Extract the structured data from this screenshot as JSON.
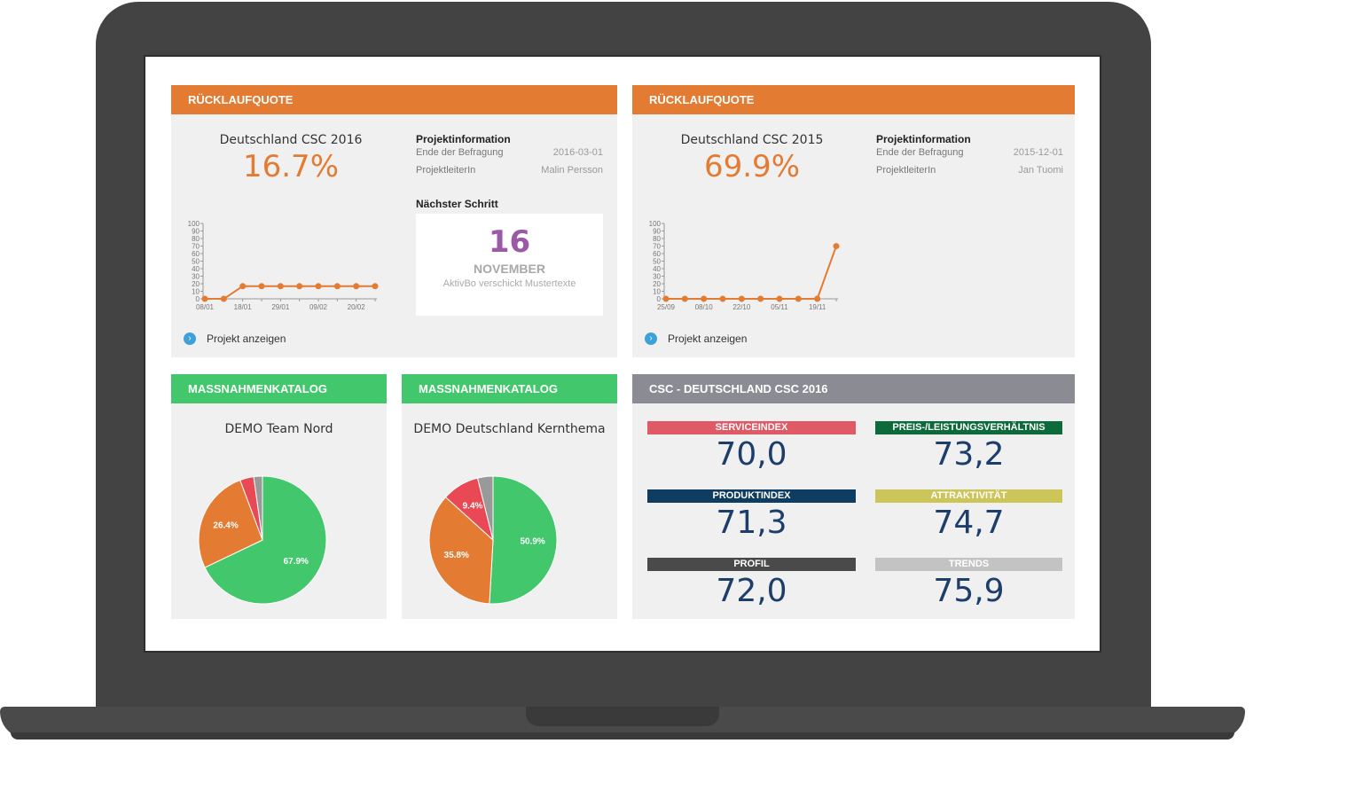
{
  "panels": {
    "p1": {
      "header": "RÜCKLAUFQUOTE",
      "title": "Deutschland CSC 2016",
      "percent": "16.7%",
      "info_title": "Projektinformation",
      "end_label": "Ende der Befragung",
      "end_value": "2016-03-01",
      "lead_label": "ProjektleiterIn",
      "lead_value": "Malin Persson",
      "next_title": "Nächster Schritt",
      "next_day": "16",
      "next_month": "NOVEMBER",
      "next_note": "AktivBo verschickt Mustertexte",
      "link": "Projekt anzeigen"
    },
    "p2": {
      "header": "RÜCKLAUFQUOTE",
      "title": "Deutschland CSC 2015",
      "percent": "69.9%",
      "info_title": "Projektinformation",
      "end_label": "Ende der Befragung",
      "end_value": "2015-12-01",
      "lead_label": "ProjektleiterIn",
      "lead_value": "Jan Tuomi",
      "link": "Projekt anzeigen"
    },
    "p3": {
      "header": "MASSNAHMENKATALOG",
      "title": "DEMO Team Nord"
    },
    "p4": {
      "header": "MASSNAHMENKATALOG",
      "title": "DEMO Deutschland Kernthema"
    },
    "p5": {
      "header": "CSC - DEUTSCHLAND CSC 2016",
      "kpis": [
        {
          "label": "SERVICEINDEX",
          "value": "70,0",
          "color": "#e05a66"
        },
        {
          "label": "PREIS-/LEISTUNGSVERHÄLTNIS",
          "value": "73,2",
          "color": "#0d6b3b"
        },
        {
          "label": "PRODUKTINDEX",
          "value": "71,3",
          "color": "#0e3d61"
        },
        {
          "label": "ATTRAKTIVITÄT",
          "value": "74,7",
          "color": "#cbc55a"
        },
        {
          "label": "PROFIL",
          "value": "72,0",
          "color": "#4a4a4a"
        },
        {
          "label": "TRENDS",
          "value": "75,9",
          "color": "#c3c3c3"
        }
      ]
    }
  },
  "chart_data": [
    {
      "type": "line",
      "x": [
        "08/01",
        "",
        "18/01",
        "",
        "29/01",
        "",
        "09/02",
        "",
        "20/02",
        ""
      ],
      "values": [
        0,
        0,
        16.7,
        16.7,
        16.7,
        16.7,
        16.7,
        16.7,
        16.7,
        16.7
      ],
      "yticks": [
        "100",
        "90",
        "80",
        "70",
        "60",
        "50",
        "40",
        "30",
        "20",
        "10",
        "0"
      ],
      "ylim": [
        0,
        100
      ],
      "color": "#e47b33"
    },
    {
      "type": "line",
      "x": [
        "25/09",
        "",
        "08/10",
        "",
        "22/10",
        "",
        "05/11",
        "",
        "19/11",
        ""
      ],
      "values": [
        0,
        0,
        0,
        0,
        0,
        0,
        0,
        0,
        0,
        69.9
      ],
      "yticks": [
        "100",
        "90",
        "80",
        "70",
        "60",
        "50",
        "40",
        "30",
        "20",
        "10",
        "0"
      ],
      "ylim": [
        0,
        100
      ],
      "color": "#e47b33"
    },
    {
      "type": "pie",
      "slices": [
        {
          "value": 67.9,
          "label": "67.9%",
          "color": "#43c76c"
        },
        {
          "value": 26.4,
          "label": "26.4%",
          "color": "#e47b33"
        },
        {
          "value": 3.5,
          "label": "",
          "color": "#e84955"
        },
        {
          "value": 2.2,
          "label": "",
          "color": "#999999"
        }
      ]
    },
    {
      "type": "pie",
      "slices": [
        {
          "value": 50.9,
          "label": "50.9%",
          "color": "#43c76c"
        },
        {
          "value": 35.8,
          "label": "35.8%",
          "color": "#e47b33"
        },
        {
          "value": 9.4,
          "label": "9.4%",
          "color": "#e84955"
        },
        {
          "value": 3.9,
          "label": "",
          "color": "#999999"
        }
      ]
    }
  ]
}
